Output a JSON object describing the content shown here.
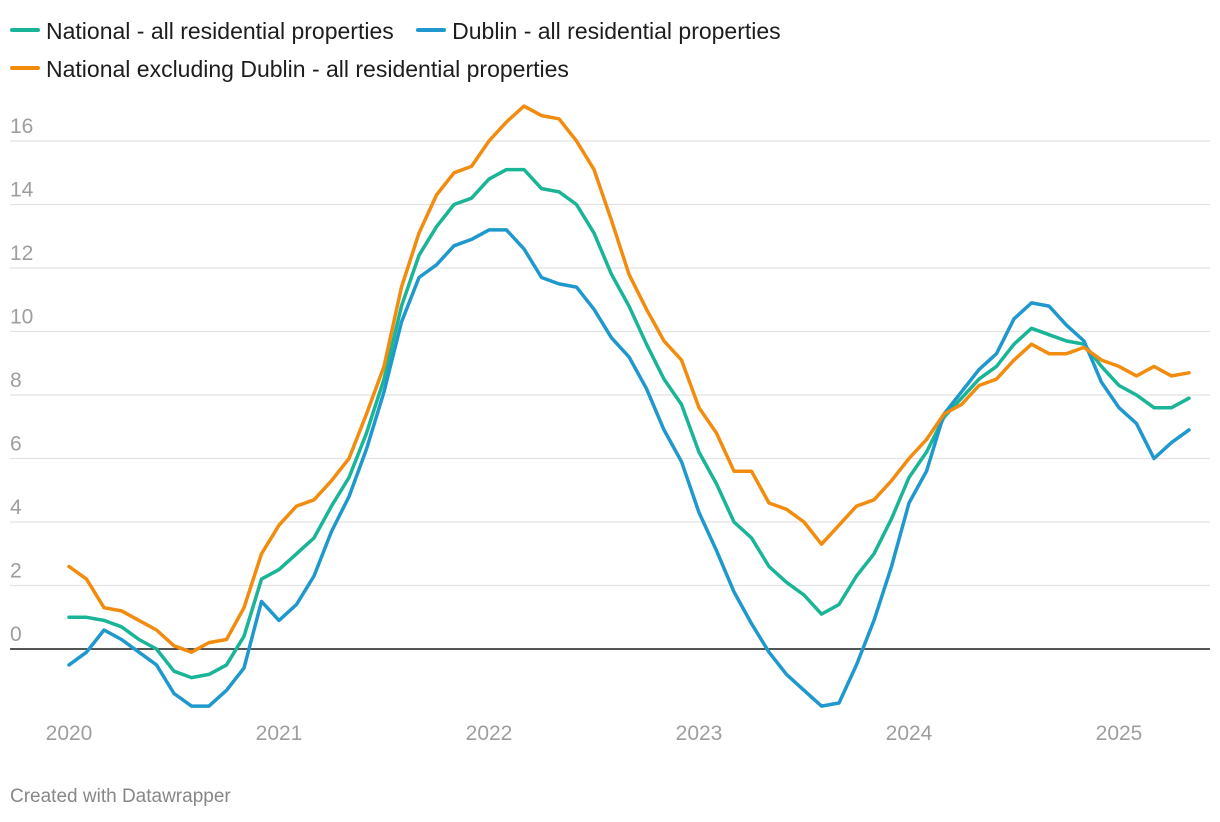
{
  "chart_data": {
    "type": "line",
    "title": "",
    "xlabel": "",
    "ylabel": "",
    "ylim": [
      -1.8,
      17.5
    ],
    "yticks": [
      0,
      2,
      4,
      6,
      8,
      10,
      12,
      14,
      16
    ],
    "xtick_labels": [
      "2020",
      "2021",
      "2022",
      "2023",
      "2024",
      "2025"
    ],
    "x_start": "2020-01",
    "x_end": "2025-05",
    "legend_position": "top",
    "grid": true,
    "series": [
      {
        "name": "National - all residential properties",
        "color": "#19b596",
        "values": [
          1.0,
          1.0,
          0.9,
          0.7,
          0.3,
          0.0,
          -0.7,
          -0.9,
          -0.8,
          -0.5,
          0.4,
          2.2,
          2.5,
          3.0,
          3.5,
          4.5,
          5.4,
          6.8,
          8.5,
          10.8,
          12.4,
          13.3,
          14.0,
          14.2,
          14.8,
          15.1,
          15.1,
          14.5,
          14.4,
          14.0,
          13.1,
          11.8,
          10.8,
          9.6,
          8.5,
          7.7,
          6.2,
          5.2,
          4.0,
          3.5,
          2.6,
          2.1,
          1.7,
          1.1,
          1.4,
          2.3,
          3.0,
          4.1,
          5.4,
          6.2,
          7.3,
          7.9,
          8.5,
          8.9,
          9.6,
          10.1,
          9.9,
          9.7,
          9.6,
          8.9,
          8.3,
          8.0,
          7.6,
          7.6,
          7.9
        ]
      },
      {
        "name": "Dublin - all residential properties",
        "color": "#1f99cd",
        "values": [
          -0.5,
          -0.1,
          0.6,
          0.3,
          -0.1,
          -0.5,
          -1.4,
          -1.8,
          -1.8,
          -1.3,
          -0.6,
          1.5,
          0.9,
          1.4,
          2.3,
          3.7,
          4.8,
          6.3,
          8.1,
          10.3,
          11.7,
          12.1,
          12.7,
          12.9,
          13.2,
          13.2,
          12.6,
          11.7,
          11.5,
          11.4,
          10.7,
          9.8,
          9.2,
          8.2,
          6.9,
          5.9,
          4.3,
          3.1,
          1.8,
          0.8,
          -0.1,
          -0.8,
          -1.3,
          -1.8,
          -1.7,
          -0.5,
          0.9,
          2.6,
          4.6,
          5.6,
          7.4,
          8.1,
          8.8,
          9.3,
          10.4,
          10.9,
          10.8,
          10.2,
          9.7,
          8.4,
          7.6,
          7.1,
          6.0,
          6.5,
          6.9
        ]
      },
      {
        "name": "National excluding Dublin - all residential properties",
        "color": "#f28c0f",
        "values": [
          2.6,
          2.2,
          1.3,
          1.2,
          0.9,
          0.6,
          0.1,
          -0.1,
          0.2,
          0.3,
          1.3,
          3.0,
          3.9,
          4.5,
          4.7,
          5.3,
          6.0,
          7.4,
          8.9,
          11.4,
          13.1,
          14.3,
          15.0,
          15.2,
          16.0,
          16.6,
          17.1,
          16.8,
          16.7,
          16.0,
          15.1,
          13.5,
          11.8,
          10.7,
          9.7,
          9.1,
          7.6,
          6.8,
          5.6,
          5.6,
          4.6,
          4.4,
          4.0,
          3.3,
          3.9,
          4.5,
          4.7,
          5.3,
          6.0,
          6.6,
          7.4,
          7.7,
          8.3,
          8.5,
          9.1,
          9.6,
          9.3,
          9.3,
          9.5,
          9.1,
          8.9,
          8.6,
          8.9,
          8.6,
          8.7
        ]
      }
    ]
  },
  "footer": {
    "credit": "Created with Datawrapper"
  }
}
